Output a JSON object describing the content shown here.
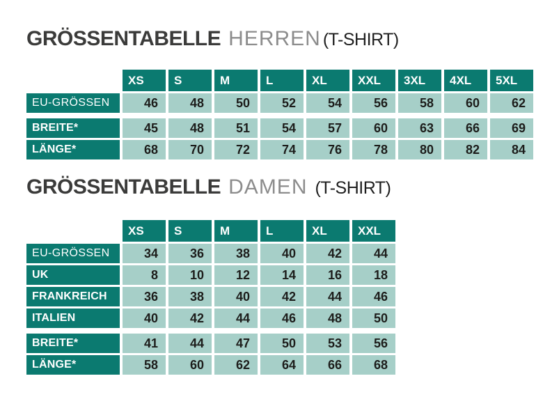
{
  "colors": {
    "teal": "#0b7a70",
    "cell_background": "#a6cfc8",
    "number_text": "#1d1d1b",
    "title_dark": "#3b3b3a",
    "title_gray": "#8c8c8c",
    "title_suffix": "#1f1f1f"
  },
  "tables": [
    {
      "id": "herren",
      "title": {
        "main": "GRÖSSENTABELLE",
        "audience": "HERREN",
        "suffix": "(T-SHIRT)"
      },
      "columns": [
        "XS",
        "S",
        "M",
        "L",
        "XL",
        "XXL",
        "3XL",
        "4XL",
        "5XL"
      ],
      "row_groups": [
        {
          "rows": [
            {
              "label": "EU-GRÖSSEN",
              "bold": false,
              "values": [
                46,
                48,
                50,
                52,
                54,
                56,
                58,
                60,
                62
              ]
            }
          ]
        },
        {
          "rows": [
            {
              "label": "BREITE*",
              "bold": true,
              "values": [
                45,
                48,
                51,
                54,
                57,
                60,
                63,
                66,
                69
              ]
            },
            {
              "label": "LÄNGE*",
              "bold": true,
              "values": [
                68,
                70,
                72,
                74,
                76,
                78,
                80,
                82,
                84
              ]
            }
          ]
        }
      ]
    },
    {
      "id": "damen",
      "title": {
        "main": "GRÖSSENTABELLE",
        "audience": "DAMEN",
        "suffix": "(T-SHIRT)"
      },
      "columns": [
        "XS",
        "S",
        "M",
        "L",
        "XL",
        "XXL"
      ],
      "row_groups": [
        {
          "rows": [
            {
              "label": "EU-GRÖSSEN",
              "bold": false,
              "values": [
                34,
                36,
                38,
                40,
                42,
                44
              ]
            },
            {
              "label": "UK",
              "bold": true,
              "values": [
                8,
                10,
                12,
                14,
                16,
                18
              ]
            },
            {
              "label": "FRANKREICH",
              "bold": true,
              "values": [
                36,
                38,
                40,
                42,
                44,
                46
              ]
            },
            {
              "label": "ITALIEN",
              "bold": true,
              "values": [
                40,
                42,
                44,
                46,
                48,
                50
              ]
            }
          ]
        },
        {
          "rows": [
            {
              "label": "BREITE*",
              "bold": true,
              "values": [
                41,
                44,
                47,
                50,
                53,
                56
              ]
            },
            {
              "label": "LÄNGE*",
              "bold": true,
              "values": [
                58,
                60,
                62,
                64,
                66,
                68
              ]
            }
          ]
        }
      ]
    }
  ]
}
